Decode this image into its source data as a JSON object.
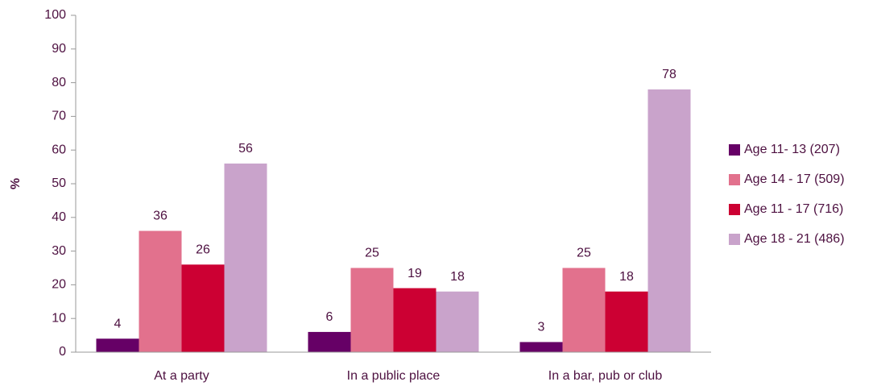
{
  "chart_data": {
    "type": "bar",
    "y_label": "%",
    "categories": [
      "At a party",
      "In a public place",
      "In a bar, pub or club"
    ],
    "series": [
      {
        "name": "Age 11- 13 (207)",
        "color": "#660066",
        "values": [
          4,
          6,
          3
        ]
      },
      {
        "name": "Age 14 - 17 (509)",
        "color": "#e2718d",
        "values": [
          36,
          25,
          25
        ]
      },
      {
        "name": "Age 11 - 17 (716)",
        "color": "#cc0033",
        "values": [
          26,
          19,
          18
        ]
      },
      {
        "name": "Age 18 - 21 (486)",
        "color": "#c9a3cb",
        "values": [
          56,
          18,
          78
        ]
      }
    ],
    "ylim": [
      0,
      100
    ],
    "yticks": [
      0,
      10,
      20,
      30,
      40,
      50,
      60,
      70,
      80,
      90,
      100
    ],
    "legend": "right"
  }
}
